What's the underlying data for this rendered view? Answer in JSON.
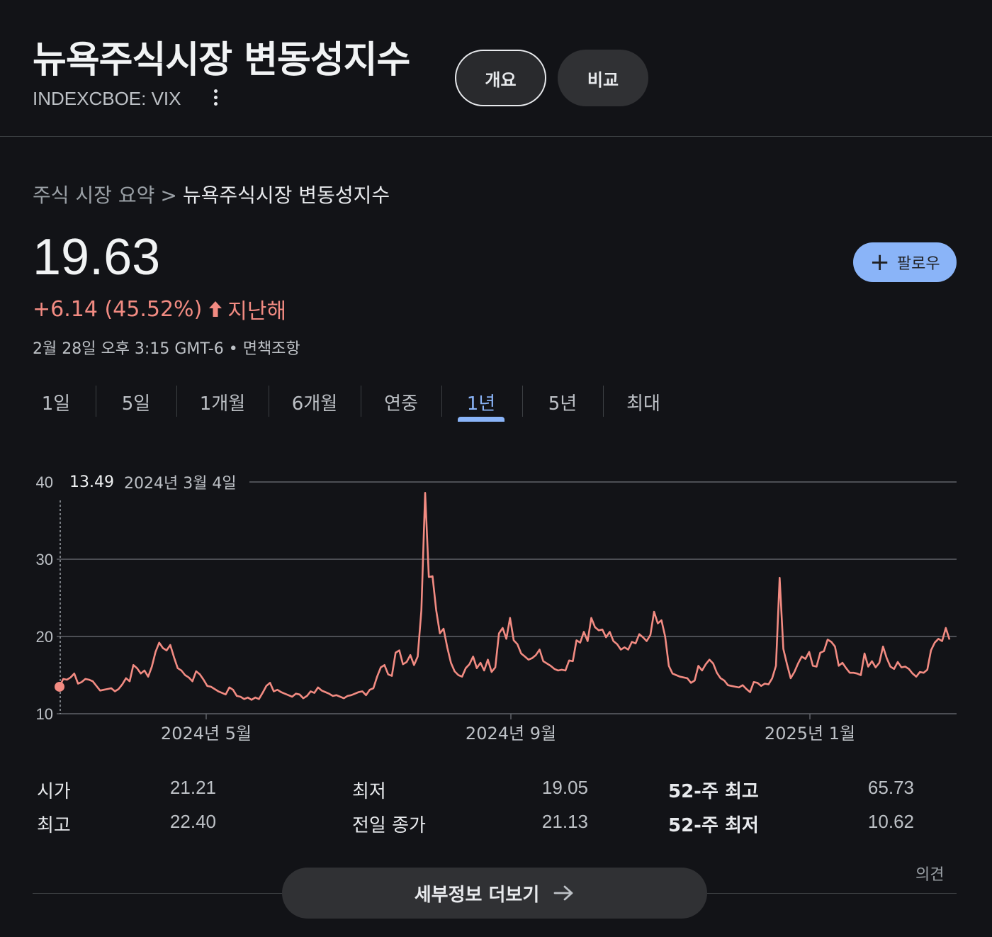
{
  "header": {
    "title": "뉴욕주식시장 변동성지수",
    "ticker": "INDEXCBOE: VIX",
    "tabs": [
      {
        "label": "개요"
      },
      {
        "label": "비교"
      }
    ]
  },
  "breadcrumb": {
    "root": "주식 시장 요약",
    "separator": ">",
    "current": "뉴욕주식시장 변동성지수"
  },
  "quote": {
    "price": "19.63",
    "change": "+6.14 (45.52%)",
    "change_direction": "up",
    "change_period": "지난해",
    "timestamp": "2월 28일 오후 3:15 GMT-6",
    "dot": "•",
    "disclaimer": "면책조항",
    "follow_label": "팔로우"
  },
  "range_tabs": [
    "1일",
    "5일",
    "1개월",
    "6개월",
    "연중",
    "1년",
    "5년",
    "최대"
  ],
  "active_range": "1년",
  "tooltip": {
    "value": "13.49",
    "date": "2024년 3월 4일"
  },
  "colors": {
    "background": "#121317",
    "line": "#f28b82",
    "accent": "#8ab4f8",
    "positive_change": "#f28b82"
  },
  "chart_data": {
    "type": "line",
    "x_tick_labels": [
      "2024년 5월",
      "2024년 9월",
      "2025년 1월"
    ],
    "y_ticks": [
      10,
      20,
      30,
      40
    ],
    "ylim": [
      10,
      40
    ],
    "grid": true,
    "series": [
      {
        "values": [
          13.5,
          14.5,
          14.4,
          14.7,
          15.2,
          13.9,
          14.1,
          14.5,
          14.4,
          14.2,
          13.6,
          13.0,
          13.1,
          13.2,
          13.3,
          12.9,
          13.2,
          13.8,
          14.6,
          14.2,
          16.3,
          15.9,
          15.2,
          15.6,
          14.8,
          16.1,
          18.0,
          19.2,
          18.5,
          18.2,
          18.9,
          17.3,
          15.9,
          15.6,
          15.0,
          14.7,
          14.2,
          15.5,
          15.1,
          14.4,
          13.6,
          13.5,
          13.2,
          12.9,
          12.7,
          12.5,
          13.4,
          13.1,
          12.3,
          12.2,
          11.9,
          12.1,
          11.8,
          12.1,
          11.9,
          12.7,
          13.6,
          14.0,
          12.9,
          13.1,
          12.8,
          12.6,
          12.4,
          12.2,
          12.6,
          12.5,
          12.0,
          12.3,
          12.9,
          12.7,
          13.4,
          13.0,
          12.8,
          12.6,
          12.3,
          12.4,
          12.2,
          12.0,
          12.3,
          12.4,
          12.6,
          12.8,
          12.9,
          12.4,
          13.1,
          13.3,
          14.8,
          16.0,
          16.3,
          15.1,
          14.9,
          17.9,
          18.2,
          16.4,
          16.7,
          17.6,
          16.3,
          17.4,
          23.4,
          38.6,
          27.7,
          27.8,
          23.4,
          20.4,
          21.0,
          18.6,
          16.6,
          15.5,
          15.0,
          14.8,
          15.9,
          16.4,
          17.4,
          15.9,
          16.6,
          15.6,
          17.0,
          15.4,
          16.0,
          20.4,
          21.1,
          19.7,
          22.4,
          19.5,
          19.0,
          17.8,
          17.4,
          17.0,
          17.2,
          17.6,
          18.3,
          16.8,
          16.5,
          16.2,
          15.8,
          15.6,
          15.7,
          15.6,
          16.9,
          16.8,
          19.5,
          19.2,
          20.6,
          19.4,
          22.4,
          21.2,
          20.8,
          20.9,
          19.9,
          20.6,
          19.4,
          19.0,
          18.3,
          18.6,
          18.3,
          19.3,
          19.1,
          20.3,
          19.9,
          19.4,
          20.2,
          23.2,
          21.7,
          22.1,
          20.0,
          16.2,
          15.2,
          15.0,
          14.8,
          14.7,
          14.6,
          14.0,
          14.3,
          16.2,
          15.6,
          16.4,
          17.0,
          16.5,
          15.3,
          14.6,
          14.3,
          13.7,
          13.6,
          13.5,
          13.4,
          13.7,
          13.2,
          12.8,
          14.1,
          14.0,
          13.6,
          13.9,
          13.8,
          14.6,
          16.2,
          27.6,
          18.4,
          16.4,
          14.6,
          15.4,
          16.5,
          17.4,
          17.1,
          18.0,
          16.2,
          16.1,
          17.9,
          18.1,
          19.6,
          19.3,
          18.7,
          16.2,
          16.6,
          15.9,
          15.3,
          15.3,
          15.2,
          15.0,
          17.8,
          16.1,
          16.8,
          16.0,
          16.6,
          18.7,
          17.2,
          16.1,
          15.8,
          16.7,
          16.0,
          16.1,
          15.8,
          15.2,
          14.8,
          15.4,
          15.3,
          15.7,
          18.2,
          19.2,
          19.7,
          19.4,
          21.1,
          19.6
        ]
      }
    ],
    "highlight_point": {
      "x": "2024년 3월 4일",
      "y": 13.49
    }
  },
  "stats": [
    {
      "label": "시가",
      "value": "21.21"
    },
    {
      "label": "최고",
      "value": "22.40"
    },
    {
      "label": "최저",
      "value": "19.05"
    },
    {
      "label": "전일 종가",
      "value": "21.13"
    },
    {
      "label": "52-주 최고",
      "value": "65.73"
    },
    {
      "label": "52-주 최저",
      "value": "10.62"
    }
  ],
  "footer": {
    "feedback": "의견",
    "more_info": "세부정보 더보기"
  }
}
